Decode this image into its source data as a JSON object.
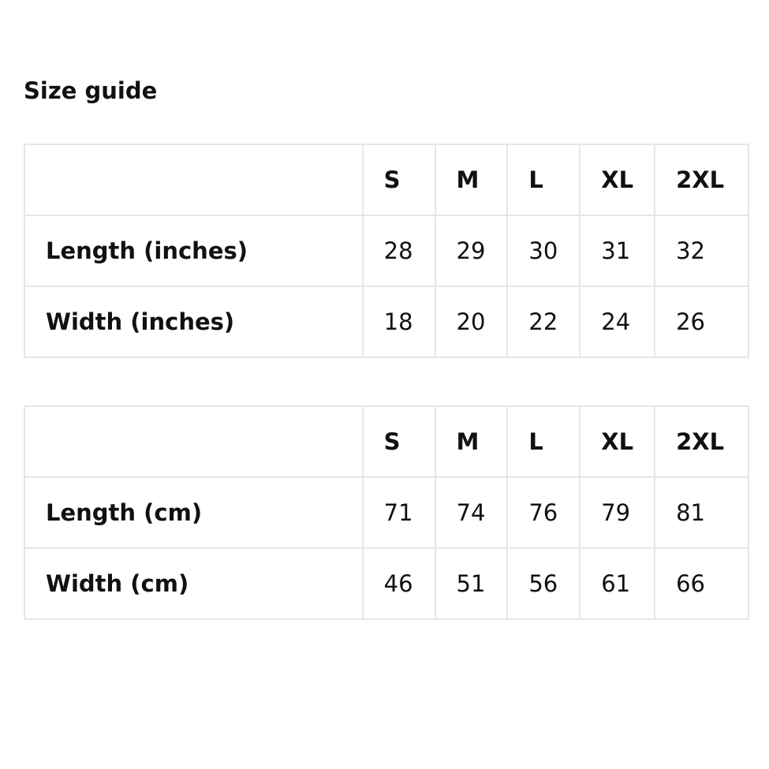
{
  "title": "Size guide",
  "tables": [
    {
      "headers": [
        "",
        "S",
        "M",
        "L",
        "XL",
        "2XL"
      ],
      "rows": [
        {
          "label": "Length (inches)",
          "values": [
            "28",
            "29",
            "30",
            "31",
            "32"
          ]
        },
        {
          "label": "Width (inches)",
          "values": [
            "18",
            "20",
            "22",
            "24",
            "26"
          ]
        }
      ]
    },
    {
      "headers": [
        "",
        "S",
        "M",
        "L",
        "XL",
        "2XL"
      ],
      "rows": [
        {
          "label": "Length (cm)",
          "values": [
            "71",
            "74",
            "76",
            "79",
            "81"
          ]
        },
        {
          "label": "Width (cm)",
          "values": [
            "46",
            "51",
            "56",
            "61",
            "66"
          ]
        }
      ]
    }
  ]
}
